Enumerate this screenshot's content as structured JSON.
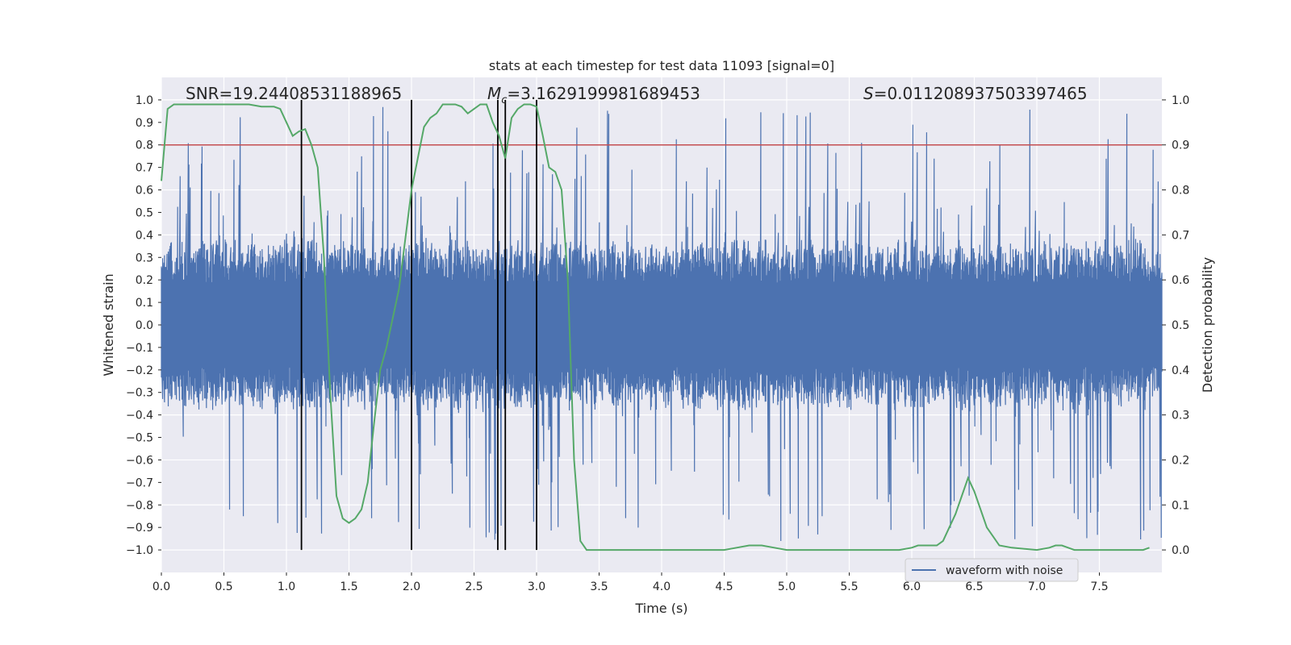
{
  "chart_data": {
    "type": "line",
    "title": "stats at each timestep for test data 11093 [signal=0]",
    "xlabel": "Time (s)",
    "ylabel": "Whitened strain",
    "ylabel_right": "Detection probability",
    "xlim": [
      0.0,
      8.0
    ],
    "ylim": [
      -1.1,
      1.1
    ],
    "ylim_right": [
      -0.05,
      1.05
    ],
    "x_ticks": [
      0.0,
      0.5,
      1.0,
      1.5,
      2.0,
      2.5,
      3.0,
      3.5,
      4.0,
      4.5,
      5.0,
      5.5,
      6.0,
      6.5,
      7.0,
      7.5
    ],
    "x_tick_labels": [
      "0.0",
      "0.5",
      "1.0",
      "1.5",
      "2.0",
      "2.5",
      "3.0",
      "3.5",
      "4.0",
      "4.5",
      "5.0",
      "5.5",
      "6.0",
      "6.5",
      "7.0",
      "7.5"
    ],
    "y_ticks": [
      1.0,
      0.9,
      0.8,
      0.7,
      0.6,
      0.5,
      0.4,
      0.3,
      0.2,
      0.1,
      0.0,
      -0.1,
      -0.2,
      -0.3,
      -0.4,
      -0.5,
      -0.6,
      -0.7,
      -0.8,
      -0.9,
      -1.0
    ],
    "y_tick_labels": [
      "1.0",
      "0.9",
      "0.8",
      "0.7",
      "0.6",
      "0.5",
      "0.4",
      "0.3",
      "0.2",
      "0.1",
      "0.0",
      "−0.1",
      "−0.2",
      "−0.3",
      "−0.4",
      "−0.5",
      "−0.6",
      "−0.7",
      "−0.8",
      "−0.9",
      "−1.0"
    ],
    "y_right_ticks": [
      1.0,
      0.9,
      0.8,
      0.7,
      0.6,
      0.5,
      0.4,
      0.3,
      0.2,
      0.1,
      0.0
    ],
    "y_right_tick_labels": [
      "1.0",
      "0.9",
      "0.8",
      "0.7",
      "0.6",
      "0.5",
      "0.4",
      "0.3",
      "0.2",
      "0.1",
      "0.0"
    ],
    "grid": true,
    "legend": {
      "position": "bottom-right",
      "entries": [
        "waveform with noise"
      ]
    },
    "annotations": {
      "snr": "SNR=19.24408531188965",
      "mc_symbol": "M",
      "mc_sub": "c",
      "mc_value": "=3.1629199981689453",
      "s_symbol": "S",
      "s_value": "=0.011208937503397465"
    },
    "threshold_right": 0.9,
    "vertical_lines_x": [
      1.12,
      2.0,
      2.69,
      2.75,
      3.0
    ],
    "series": [
      {
        "name": "waveform with noise",
        "kind": "noise-band",
        "x_range": [
          0.0,
          8.0
        ],
        "typical_amplitude": 0.38,
        "max_amplitude": 0.97
      },
      {
        "axis": "right",
        "x": [
          0.0,
          0.05,
          0.1,
          0.2,
          0.3,
          0.5,
          0.7,
          0.8,
          0.9,
          0.95,
          1.0,
          1.05,
          1.1,
          1.15,
          1.2,
          1.25,
          1.3,
          1.35,
          1.4,
          1.45,
          1.5,
          1.55,
          1.6,
          1.65,
          1.7,
          1.75,
          1.8,
          1.9,
          2.0,
          2.05,
          2.1,
          2.15,
          2.2,
          2.25,
          2.3,
          2.35,
          2.4,
          2.45,
          2.5,
          2.55,
          2.6,
          2.65,
          2.7,
          2.75,
          2.8,
          2.85,
          2.9,
          2.95,
          3.0,
          3.05,
          3.1,
          3.15,
          3.2,
          3.25,
          3.3,
          3.35,
          3.4,
          3.5,
          3.7,
          4.0,
          4.3,
          4.5,
          4.6,
          4.7,
          4.8,
          4.9,
          5.0,
          5.3,
          5.5,
          5.9,
          6.0,
          6.05,
          6.1,
          6.2,
          6.25,
          6.3,
          6.35,
          6.4,
          6.45,
          6.5,
          6.55,
          6.6,
          6.65,
          6.7,
          6.8,
          7.0,
          7.1,
          7.15,
          7.2,
          7.25,
          7.3,
          7.5,
          7.7,
          7.85,
          7.9
        ],
        "values": [
          0.82,
          0.98,
          0.99,
          0.99,
          0.99,
          0.99,
          0.99,
          0.985,
          0.985,
          0.98,
          0.95,
          0.92,
          0.93,
          0.935,
          0.9,
          0.85,
          0.65,
          0.35,
          0.12,
          0.07,
          0.06,
          0.07,
          0.09,
          0.15,
          0.28,
          0.4,
          0.45,
          0.58,
          0.8,
          0.87,
          0.94,
          0.96,
          0.97,
          0.99,
          0.99,
          0.99,
          0.985,
          0.97,
          0.98,
          0.99,
          0.99,
          0.95,
          0.92,
          0.87,
          0.96,
          0.98,
          0.99,
          0.99,
          0.985,
          0.92,
          0.85,
          0.84,
          0.8,
          0.6,
          0.2,
          0.02,
          0.0,
          0.0,
          0.0,
          0.0,
          0.0,
          0.0,
          0.005,
          0.01,
          0.01,
          0.005,
          0.0,
          0.0,
          0.0,
          0.0,
          0.005,
          0.01,
          0.01,
          0.01,
          0.02,
          0.05,
          0.08,
          0.12,
          0.16,
          0.13,
          0.09,
          0.05,
          0.03,
          0.01,
          0.005,
          0.0,
          0.005,
          0.01,
          0.01,
          0.005,
          0.0,
          0.0,
          0.0,
          0.0,
          0.005
        ]
      }
    ]
  },
  "colors": {
    "background": "#eaeaf2",
    "grid": "#ffffff",
    "waveform": "#4c72b0",
    "probability": "#55a868",
    "threshold": "#c44e52",
    "marker": "#000000"
  }
}
